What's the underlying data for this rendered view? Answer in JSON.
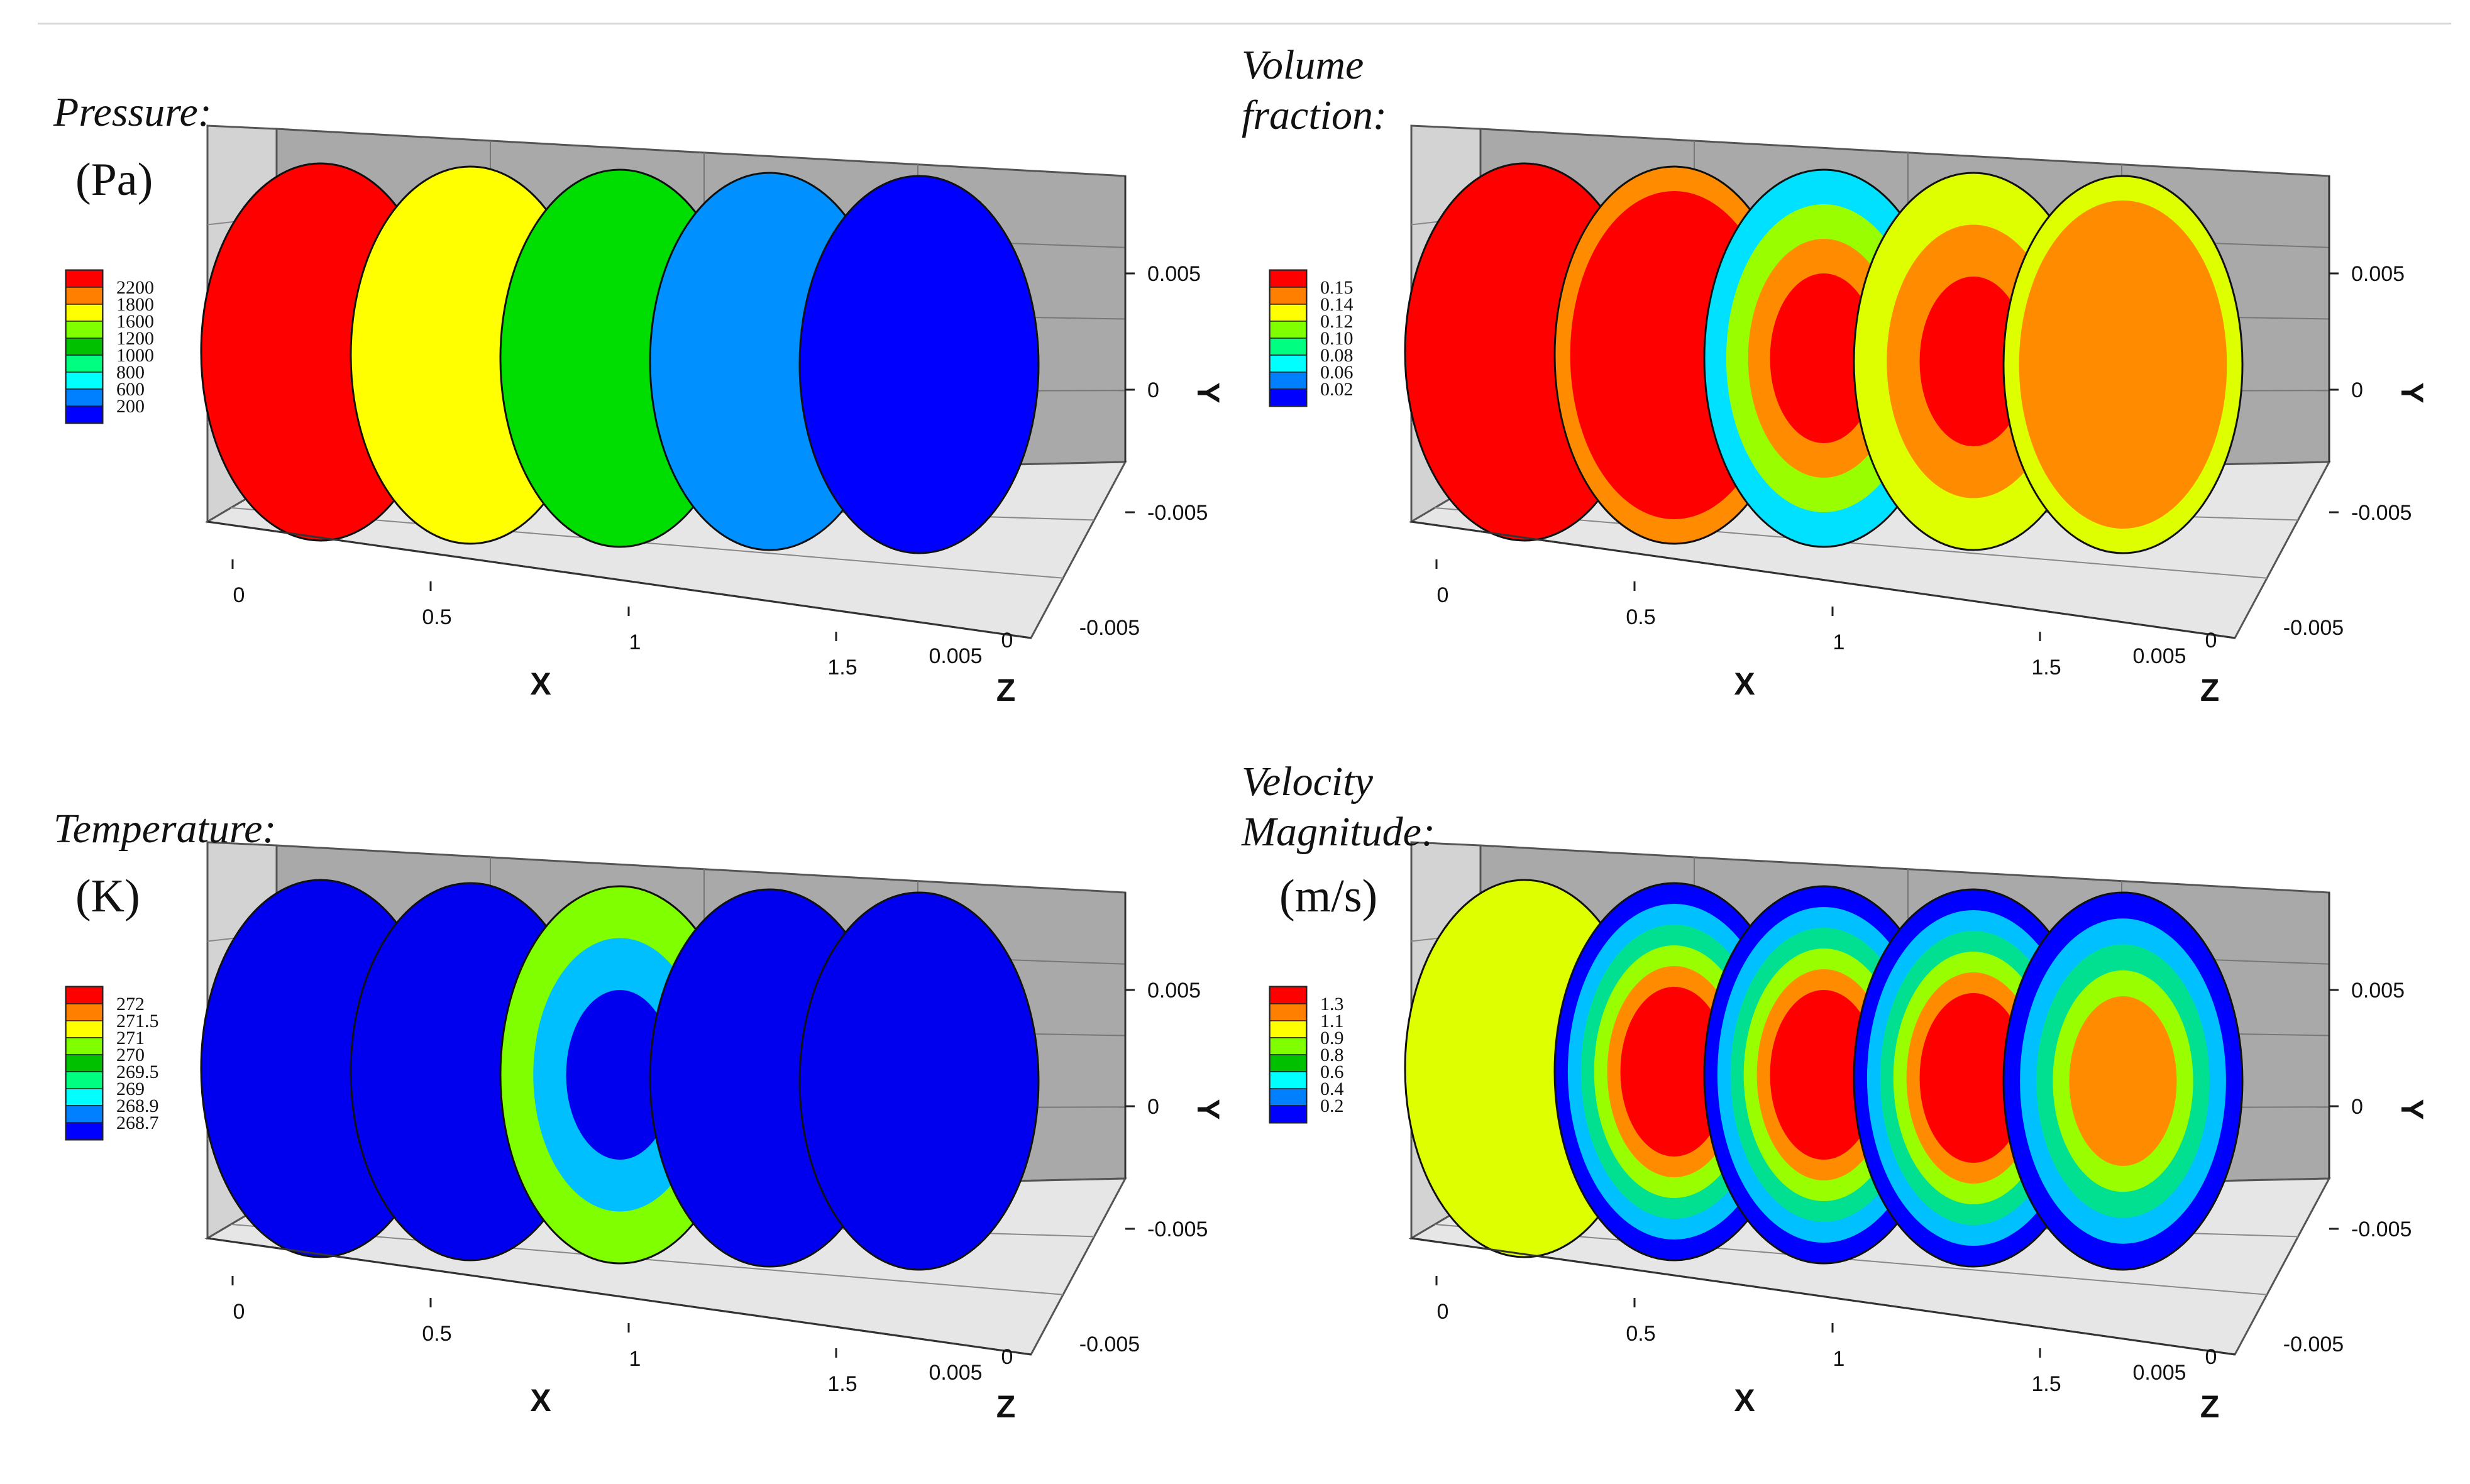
{
  "chart_data": [
    {
      "type": "contour",
      "title": "Pressure:",
      "unit": "(Pa)",
      "xlabel": "X",
      "ylabel": "Y",
      "zlabel": "Z",
      "x_ticks": [
        "0",
        "0.5",
        "1",
        "1.5"
      ],
      "y_ticks": [
        "0.005",
        "0",
        "-0.005"
      ],
      "z_ticks": [
        "0.005",
        "0",
        "-0.005"
      ],
      "legend": {
        "levels": [
          "2200",
          "1800",
          "1600",
          "1200",
          "1000",
          "800",
          "600",
          "200"
        ],
        "colors": [
          "#ff0000",
          "#ff8000",
          "#ffff00",
          "#80ff00",
          "#00c000",
          "#00ff80",
          "#00ffff",
          "#0080ff",
          "#0000ff"
        ]
      },
      "sections": [
        {
          "x": 0,
          "rings": [
            "#ff0000"
          ]
        },
        {
          "x": 0.4,
          "rings": [
            "#ffff00"
          ]
        },
        {
          "x": 0.8,
          "rings": [
            "#00dd00"
          ]
        },
        {
          "x": 1.2,
          "rings": [
            "#0090ff"
          ]
        },
        {
          "x": 1.6,
          "rings": [
            "#0000ff"
          ]
        }
      ]
    },
    {
      "type": "contour",
      "title": "Volume\nfraction:",
      "unit": "",
      "xlabel": "X",
      "ylabel": "Y",
      "zlabel": "Z",
      "x_ticks": [
        "0",
        "0.5",
        "1",
        "1.5"
      ],
      "y_ticks": [
        "0.005",
        "0",
        "-0.005"
      ],
      "z_ticks": [
        "0.005",
        "0",
        "-0.005"
      ],
      "legend": {
        "levels": [
          "0.15",
          "0.14",
          "0.12",
          "0.10",
          "0.08",
          "0.06",
          "0.02"
        ],
        "colors": [
          "#ff0000",
          "#ff8000",
          "#ffff00",
          "#80ff00",
          "#00ff80",
          "#00ffff",
          "#0080ff",
          "#0000ff"
        ]
      },
      "sections": [
        {
          "x": 0,
          "rings": [
            "#ff0000"
          ]
        },
        {
          "x": 0.4,
          "rings": [
            "#ff8c00",
            "#ff0000"
          ]
        },
        {
          "x": 0.8,
          "rings": [
            "#00e0ff",
            "#99ff00",
            "#ff8c00",
            "#ff0000"
          ]
        },
        {
          "x": 1.2,
          "rings": [
            "#ddff00",
            "#ff8c00",
            "#ff0000"
          ]
        },
        {
          "x": 1.6,
          "rings": [
            "#ddff00",
            "#ff8c00"
          ]
        }
      ]
    },
    {
      "type": "contour",
      "title": "Temperature:",
      "unit": "(K)",
      "xlabel": "X",
      "ylabel": "Y",
      "zlabel": "Z",
      "x_ticks": [
        "0",
        "0.5",
        "1",
        "1.5"
      ],
      "y_ticks": [
        "0.005",
        "0",
        "-0.005"
      ],
      "z_ticks": [
        "0.005",
        "0",
        "-0.005"
      ],
      "legend": {
        "levels": [
          "272",
          "271.5",
          "271",
          "270",
          "269.5",
          "269",
          "268.9",
          "268.7"
        ],
        "colors": [
          "#ff0000",
          "#ff8000",
          "#ffff00",
          "#80ff00",
          "#00c000",
          "#00ff80",
          "#00ffff",
          "#0080ff",
          "#0000ff"
        ]
      },
      "sections": [
        {
          "x": 0,
          "rings": [
            "#0000ee"
          ]
        },
        {
          "x": 0.4,
          "rings": [
            "#0000ee"
          ]
        },
        {
          "x": 0.8,
          "rings": [
            "#80ff00",
            "#00bfff",
            "#0000ee"
          ]
        },
        {
          "x": 1.2,
          "rings": [
            "#0000ee"
          ]
        },
        {
          "x": 1.6,
          "rings": [
            "#0000ee"
          ]
        }
      ]
    },
    {
      "type": "contour",
      "title": "Velocity\nMagnitude:",
      "unit": "(m/s)",
      "xlabel": "X",
      "ylabel": "Y",
      "zlabel": "Z",
      "x_ticks": [
        "0",
        "0.5",
        "1",
        "1.5"
      ],
      "y_ticks": [
        "0.005",
        "0",
        "-0.005"
      ],
      "z_ticks": [
        "0.005",
        "0",
        "-0.005"
      ],
      "legend": {
        "levels": [
          "1.3",
          "1.1",
          "0.9",
          "0.8",
          "0.6",
          "0.4",
          "0.2"
        ],
        "colors": [
          "#ff0000",
          "#ff8000",
          "#ffff00",
          "#80ff00",
          "#00c000",
          "#00ffff",
          "#0080ff",
          "#0000ff"
        ]
      },
      "sections": [
        {
          "x": 0,
          "rings": [
            "#ddff00"
          ]
        },
        {
          "x": 0.4,
          "rings": [
            "#0000ff",
            "#00c0ff",
            "#00e090",
            "#99ff00",
            "#ff8c00",
            "#ff0000"
          ]
        },
        {
          "x": 0.8,
          "rings": [
            "#0000ff",
            "#00c0ff",
            "#00e090",
            "#99ff00",
            "#ff8c00",
            "#ff0000"
          ]
        },
        {
          "x": 1.2,
          "rings": [
            "#0000ff",
            "#00c0ff",
            "#00e090",
            "#99ff00",
            "#ff8c00",
            "#ff0000"
          ]
        },
        {
          "x": 1.6,
          "rings": [
            "#0000ff",
            "#00c0ff",
            "#00e090",
            "#99ff00",
            "#ff8c00"
          ]
        }
      ]
    }
  ]
}
